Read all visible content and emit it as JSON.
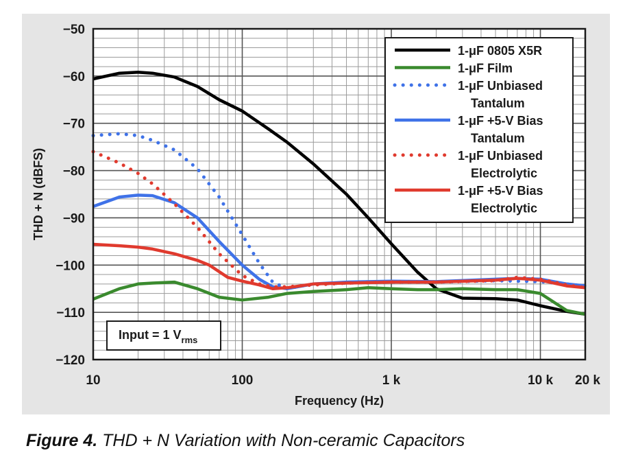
{
  "chart_data": {
    "type": "line",
    "xlabel": "Frequency (Hz)",
    "ylabel": "THD + N (dBFS)",
    "x_scale": "log",
    "xlim": [
      10,
      20000
    ],
    "ylim": [
      -120,
      -50
    ],
    "grid": true,
    "legend_position": "top-right",
    "x_ticks": [
      {
        "value": 10,
        "label": "10"
      },
      {
        "value": 100,
        "label": "100"
      },
      {
        "value": 1000,
        "label": "1 k"
      },
      {
        "value": 10000,
        "label": "10 k"
      },
      {
        "value": 20000,
        "label": "20 k"
      }
    ],
    "y_ticks": [
      -50,
      -60,
      -70,
      -80,
      -90,
      -100,
      -110,
      -120
    ],
    "annotation": {
      "prefix": "Input = 1 V",
      "subscript": "rms"
    },
    "series": [
      {
        "name_lines": [
          "1-μF 0805 X5R"
        ],
        "color": "#000000",
        "dashed": false,
        "x": [
          10,
          15,
          20,
          25,
          35,
          50,
          70,
          100,
          150,
          200,
          300,
          500,
          700,
          1000,
          1500,
          2000,
          3000,
          5000,
          7000,
          10000,
          15000,
          20000
        ],
        "y": [
          -60.6,
          -59.4,
          -59.2,
          -59.4,
          -60.2,
          -62.2,
          -65.0,
          -67.4,
          -71.2,
          -74.0,
          -78.6,
          -85.0,
          -90.0,
          -95.5,
          -101.5,
          -105.0,
          -107.0,
          -107.1,
          -107.4,
          -108.6,
          -109.8,
          -110.4
        ]
      },
      {
        "name_lines": [
          "1-μF Film"
        ],
        "color": "#3a8a2e",
        "dashed": false,
        "x": [
          10,
          15,
          20,
          25,
          35,
          50,
          70,
          100,
          150,
          200,
          300,
          500,
          700,
          1000,
          1500,
          2000,
          3000,
          5000,
          7000,
          10000,
          15000,
          20000
        ],
        "y": [
          -107.2,
          -105.0,
          -104.0,
          -103.8,
          -103.6,
          -105.0,
          -106.8,
          -107.4,
          -106.8,
          -106.0,
          -105.6,
          -105.2,
          -104.8,
          -105.0,
          -105.2,
          -105.2,
          -105.0,
          -105.2,
          -105.2,
          -106.0,
          -109.6,
          -110.4
        ]
      },
      {
        "name_lines": [
          "1-μF Unbiased",
          "Tantalum"
        ],
        "color": "#3f72e8",
        "dashed": true,
        "x": [
          10,
          15,
          20,
          25,
          35,
          50,
          70,
          100,
          130,
          160,
          200,
          250,
          300,
          500,
          1000,
          2000,
          5000,
          10000,
          20000
        ],
        "y": [
          -72.6,
          -72.2,
          -72.6,
          -73.6,
          -75.6,
          -79.6,
          -85.6,
          -93.6,
          -99.6,
          -103.6,
          -105.0,
          -104.4,
          -104.0,
          -103.8,
          -103.6,
          -103.6,
          -103.3,
          -103.5,
          -104.4
        ]
      },
      {
        "name_lines": [
          "1-μF +5-V Bias",
          "Tantalum"
        ],
        "color": "#3f72e8",
        "dashed": false,
        "x": [
          10,
          15,
          20,
          25,
          35,
          50,
          70,
          100,
          130,
          160,
          200,
          300,
          500,
          1000,
          2000,
          5000,
          7000,
          10000,
          15000,
          20000
        ],
        "y": [
          -87.6,
          -85.6,
          -85.2,
          -85.3,
          -86.8,
          -90.0,
          -95.0,
          -100.0,
          -103.0,
          -104.6,
          -105.0,
          -104.0,
          -103.6,
          -103.4,
          -103.5,
          -103.0,
          -102.8,
          -103.0,
          -104.0,
          -104.4
        ]
      },
      {
        "name_lines": [
          "1-μF Unbiased",
          "Electrolytic"
        ],
        "color": "#e03a2e",
        "dashed": true,
        "x": [
          10,
          15,
          20,
          25,
          35,
          50,
          70,
          100,
          130,
          160,
          200,
          300,
          500,
          1000,
          2000,
          5000,
          7000,
          10000,
          15000,
          20000
        ],
        "y": [
          -76.0,
          -78.4,
          -80.6,
          -82.8,
          -87.0,
          -92.0,
          -97.6,
          -102.2,
          -104.0,
          -104.6,
          -104.6,
          -104.2,
          -103.8,
          -103.6,
          -103.6,
          -103.3,
          -102.6,
          -103.0,
          -104.2,
          -104.8
        ]
      },
      {
        "name_lines": [
          "1-μF +5-V Bias",
          "Electrolytic"
        ],
        "color": "#e03a2e",
        "dashed": false,
        "x": [
          10,
          15,
          20,
          25,
          35,
          50,
          60,
          80,
          100,
          130,
          160,
          200,
          300,
          500,
          1000,
          2000,
          5000,
          7000,
          10000,
          15000,
          20000
        ],
        "y": [
          -95.6,
          -95.9,
          -96.2,
          -96.6,
          -97.6,
          -99.0,
          -100.0,
          -102.6,
          -103.4,
          -104.2,
          -105.0,
          -104.8,
          -104.0,
          -103.8,
          -103.6,
          -103.6,
          -103.2,
          -102.8,
          -103.2,
          -104.4,
          -104.8
        ]
      }
    ]
  },
  "caption": {
    "lead": "Figure 4.",
    "text": " THD + N Variation with Non-ceramic Capacitors"
  }
}
